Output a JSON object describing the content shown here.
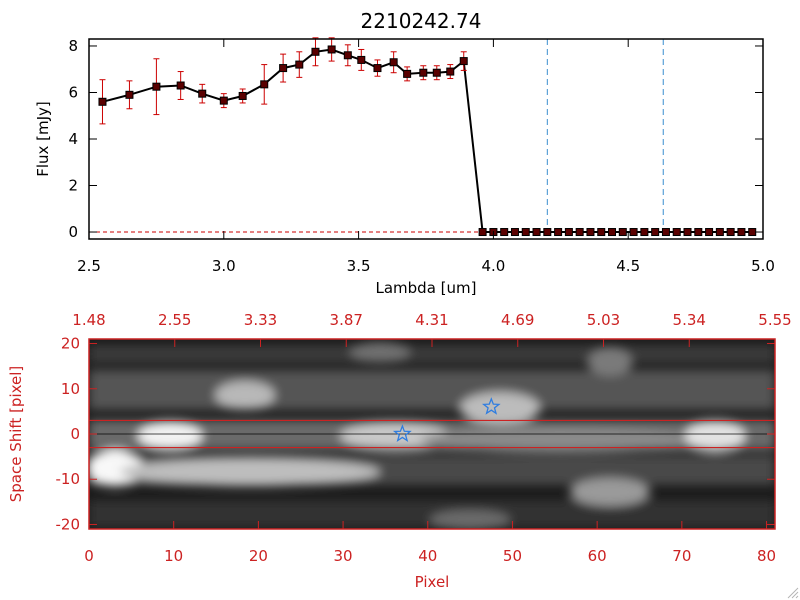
{
  "chart_data": [
    {
      "type": "line",
      "title": "2210242.74",
      "xlabel": "Lambda [um]",
      "ylabel": "Flux [mJy]",
      "xlim": [
        2.5,
        5.0
      ],
      "ylim": [
        -0.3,
        8.3
      ],
      "xticks": [
        "2.5",
        "3.0",
        "3.5",
        "4.0",
        "4.5",
        "5.0"
      ],
      "yticks": [
        "0",
        "2",
        "4",
        "6",
        "8"
      ],
      "series": [
        {
          "name": "spectrum",
          "x": [
            2.55,
            2.65,
            2.75,
            2.84,
            2.92,
            3.0,
            3.07,
            3.15,
            3.22,
            3.28,
            3.34,
            3.4,
            3.46,
            3.51,
            3.57,
            3.63,
            3.68,
            3.74,
            3.79,
            3.84,
            3.89,
            3.96,
            4.0,
            4.04,
            4.08,
            4.12,
            4.16,
            4.2,
            4.24,
            4.28,
            4.32,
            4.36,
            4.4,
            4.44,
            4.48,
            4.52,
            4.56,
            4.6,
            4.64,
            4.68,
            4.72,
            4.76,
            4.8,
            4.84,
            4.88,
            4.92,
            4.96
          ],
          "y": [
            5.6,
            5.9,
            6.25,
            6.3,
            5.95,
            5.65,
            5.85,
            6.35,
            7.05,
            7.2,
            7.75,
            7.85,
            7.6,
            7.4,
            7.05,
            7.3,
            6.8,
            6.85,
            6.85,
            6.9,
            7.35,
            0,
            0,
            0,
            0,
            0,
            0,
            0,
            0,
            0,
            0,
            0,
            0,
            0,
            0,
            0,
            0,
            0,
            0,
            0,
            0,
            0,
            0,
            0,
            0,
            0,
            0
          ],
          "err": [
            0.95,
            0.6,
            1.2,
            0.6,
            0.4,
            0.3,
            0.3,
            0.85,
            0.6,
            0.55,
            0.6,
            0.5,
            0.45,
            0.45,
            0.35,
            0.45,
            0.3,
            0.3,
            0.3,
            0.3,
            0.4,
            0,
            0,
            0,
            0,
            0,
            0,
            0,
            0,
            0,
            0,
            0,
            0,
            0,
            0,
            0,
            0,
            0,
            0,
            0,
            0,
            0,
            0,
            0,
            0,
            0,
            0
          ]
        }
      ],
      "vlines": [
        4.2,
        4.63
      ],
      "hline": 0
    },
    {
      "type": "heatmap",
      "xlabel": "Pixel",
      "ylabel": "Space Shift [pixel]",
      "xlim": [
        0,
        81
      ],
      "ylim": [
        -21,
        21
      ],
      "xticks": [
        "0",
        "10",
        "20",
        "30",
        "40",
        "50",
        "60",
        "70",
        "80"
      ],
      "yticks": [
        "-20",
        "-10",
        "0",
        "10",
        "20"
      ],
      "top_xticks": [
        "1.48",
        "2.55",
        "3.33",
        "3.87",
        "4.31",
        "4.69",
        "5.03",
        "5.34",
        "5.55"
      ],
      "aperture": [
        -3,
        3
      ],
      "stars": [
        {
          "name": "target-star",
          "x": 37,
          "y": 0
        },
        {
          "name": "neighbor-star",
          "x": 47.5,
          "y": 6
        }
      ]
    }
  ],
  "colors": {
    "axis_red": "#cc2222",
    "line": "#000000",
    "errbar": "#cc0000",
    "marker_fill": "#5a0000",
    "vline": "#3a8fd0",
    "star": "#2f7de0"
  }
}
